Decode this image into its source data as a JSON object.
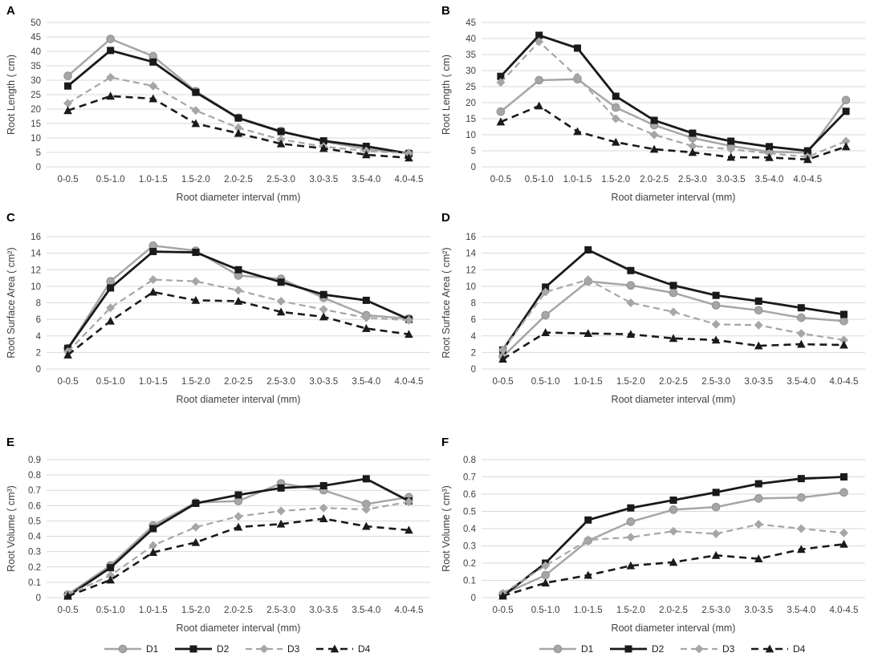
{
  "colors": {
    "gray_series": "#a6a6a6",
    "black_series": "#1a1a1a",
    "gridline": "#d9d9d9",
    "tick_text": "#404040",
    "panel_letter": "#000000"
  },
  "series_styles": {
    "D1": {
      "color": "#a6a6a6",
      "marker": "circle",
      "dash": "",
      "width": 2.5
    },
    "D2": {
      "color": "#1a1a1a",
      "marker": "square",
      "dash": "",
      "width": 2.8
    },
    "D3": {
      "color": "#a6a6a6",
      "marker": "diamond",
      "dash": "8 5",
      "width": 2.2
    },
    "D4": {
      "color": "#1a1a1a",
      "marker": "triangle",
      "dash": "9 6",
      "width": 2.6
    }
  },
  "legend": {
    "entries": [
      "D1",
      "D2",
      "D3",
      "D4"
    ]
  },
  "chart_data": [
    {
      "letter": "A",
      "type": "line",
      "title": "",
      "xlabel": "Root diameter interval (mm)",
      "ylabel": "Root Length ( cm)",
      "ylim": [
        0,
        50
      ],
      "ystep": 5,
      "tick_decimals": 0,
      "grid": true,
      "categories": [
        "0-0.5",
        "0.5-1.0",
        "1.0-1.5",
        "1.5-2.0",
        "2.0-2.5",
        "2.5-3.0",
        "3.0-3.5",
        "3.5-4.0",
        "4.0-4.5"
      ],
      "series": [
        {
          "name": "D1",
          "values": [
            31.5,
            44.3,
            38.3,
            26.2,
            17.0,
            12.4,
            8.8,
            6.2,
            4.7
          ]
        },
        {
          "name": "D2",
          "values": [
            28.0,
            40.3,
            36.3,
            25.8,
            16.9,
            12.2,
            9.0,
            7.1,
            4.6
          ]
        },
        {
          "name": "D3",
          "values": [
            22.0,
            31.0,
            28.0,
            19.5,
            13.5,
            9.5,
            7.0,
            5.5,
            4.7
          ]
        },
        {
          "name": "D4",
          "values": [
            19.5,
            24.5,
            23.6,
            15.0,
            11.6,
            8.0,
            6.4,
            4.2,
            3.1
          ]
        }
      ]
    },
    {
      "letter": "B",
      "type": "line",
      "title": "",
      "xlabel": "Root diameter interval (mm)",
      "ylabel": "Root Length ( cm)",
      "ylim": [
        0,
        45
      ],
      "ystep": 5,
      "tick_decimals": 0,
      "grid": true,
      "categories": [
        "0-0.5",
        "0.5-1.0",
        "1.0-1.5",
        "1.5-2.0",
        "2.0-2.5",
        "2.5-3.0",
        "3.0-3.5",
        "3.5-4.0",
        "4.0-4.5",
        ""
      ],
      "series": [
        {
          "name": "D1",
          "values": [
            17.2,
            27.0,
            27.3,
            18.5,
            13.0,
            9.0,
            6.5,
            4.7,
            4.4,
            20.8
          ]
        },
        {
          "name": "D2",
          "values": [
            28.2,
            41.0,
            37.0,
            22.0,
            14.5,
            10.5,
            8.0,
            6.3,
            5.0,
            17.3
          ]
        },
        {
          "name": "D3",
          "values": [
            26.3,
            39.0,
            28.0,
            15.0,
            10.0,
            6.5,
            5.5,
            4.2,
            3.1,
            8.0
          ]
        },
        {
          "name": "D4",
          "values": [
            14.0,
            19.0,
            11.0,
            7.7,
            5.5,
            4.5,
            3.0,
            2.9,
            2.3,
            6.3
          ]
        }
      ]
    },
    {
      "letter": "C",
      "type": "line",
      "title": "",
      "xlabel": "Root diameter interval (mm)",
      "ylabel": "Root Surface Area ( cm²)",
      "ylim": [
        0,
        16
      ],
      "ystep": 2,
      "tick_decimals": 0,
      "grid": true,
      "categories": [
        "0-0.5",
        "0.5-1.0",
        "1.0-1.5",
        "1.5-2.0",
        "2.0-2.5",
        "2.5-3.0",
        "3.0-3.5",
        "3.5-4.0",
        "4.0-4.5"
      ],
      "series": [
        {
          "name": "D1",
          "values": [
            2.5,
            10.6,
            14.9,
            14.3,
            11.3,
            10.9,
            8.6,
            6.5,
            6.1
          ]
        },
        {
          "name": "D2",
          "values": [
            2.5,
            9.8,
            14.2,
            14.1,
            12.0,
            10.5,
            9.0,
            8.3,
            6.0
          ]
        },
        {
          "name": "D3",
          "values": [
            2.1,
            7.4,
            10.8,
            10.6,
            9.5,
            8.2,
            7.2,
            6.2,
            5.9
          ]
        },
        {
          "name": "D4",
          "values": [
            1.7,
            5.8,
            9.3,
            8.3,
            8.2,
            6.9,
            6.3,
            4.9,
            4.2
          ]
        }
      ]
    },
    {
      "letter": "D",
      "type": "line",
      "title": "",
      "xlabel": "Root diameter interval (mm)",
      "ylabel": "Root Surface Area ( cm²)",
      "ylim": [
        0,
        16
      ],
      "ystep": 2,
      "tick_decimals": 0,
      "grid": true,
      "categories": [
        "0-0.5",
        "0.5-1.0",
        "1.0-1.5",
        "1.5-2.0",
        "2.0-2.5",
        "2.5-3.0",
        "3.0-3.5",
        "3.5-4.0",
        "4.0-4.5"
      ],
      "series": [
        {
          "name": "D1",
          "values": [
            1.5,
            6.5,
            10.6,
            10.1,
            9.2,
            7.7,
            7.1,
            6.2,
            5.8
          ]
        },
        {
          "name": "D2",
          "values": [
            2.3,
            9.9,
            14.4,
            11.9,
            10.1,
            8.9,
            8.2,
            7.4,
            6.6
          ]
        },
        {
          "name": "D3",
          "values": [
            2.3,
            9.3,
            10.8,
            8.0,
            6.9,
            5.4,
            5.3,
            4.3,
            3.5
          ]
        },
        {
          "name": "D4",
          "values": [
            1.2,
            4.4,
            4.3,
            4.2,
            3.7,
            3.5,
            2.8,
            3.0,
            2.9
          ]
        }
      ]
    },
    {
      "letter": "E",
      "type": "line",
      "title": "",
      "xlabel": "Root diameter interval (mm)",
      "ylabel": "Root Volume ( cm³)",
      "ylim": [
        0,
        0.9
      ],
      "ystep": 0.1,
      "tick_decimals": 1,
      "grid": true,
      "categories": [
        "0-0.5",
        "0.5-1.0",
        "1.0-1.5",
        "1.5-2.0",
        "2.0-2.5",
        "2.5-3.0",
        "3.0-3.5",
        "3.5-4.0",
        "4.0-4.5"
      ],
      "series": [
        {
          "name": "D1",
          "values": [
            0.02,
            0.21,
            0.47,
            0.62,
            0.63,
            0.745,
            0.7,
            0.61,
            0.655
          ]
        },
        {
          "name": "D2",
          "values": [
            0.01,
            0.195,
            0.45,
            0.615,
            0.67,
            0.715,
            0.73,
            0.775,
            0.63
          ]
        },
        {
          "name": "D3",
          "values": [
            0.02,
            0.145,
            0.34,
            0.46,
            0.53,
            0.565,
            0.585,
            0.575,
            0.625
          ]
        },
        {
          "name": "D4",
          "values": [
            0.01,
            0.115,
            0.295,
            0.36,
            0.46,
            0.48,
            0.515,
            0.465,
            0.44
          ]
        }
      ]
    },
    {
      "letter": "F",
      "type": "line",
      "title": "",
      "xlabel": "Root diameter interval (mm)",
      "ylabel": "Root Volume ( cm³)",
      "ylim": [
        0,
        0.8
      ],
      "ystep": 0.1,
      "tick_decimals": 1,
      "grid": true,
      "categories": [
        "0-0.5",
        "0.5-1.0",
        "1.0-1.5",
        "1.5-2.0",
        "2.0-2.5",
        "2.5-3.0",
        "3.0-3.5",
        "3.5-4.0",
        "4.0-4.5"
      ],
      "series": [
        {
          "name": "D1",
          "values": [
            0.02,
            0.13,
            0.33,
            0.44,
            0.51,
            0.525,
            0.575,
            0.58,
            0.61
          ]
        },
        {
          "name": "D2",
          "values": [
            0.01,
            0.2,
            0.45,
            0.52,
            0.565,
            0.61,
            0.66,
            0.69,
            0.7
          ]
        },
        {
          "name": "D3",
          "values": [
            0.025,
            0.185,
            0.335,
            0.35,
            0.385,
            0.37,
            0.425,
            0.4,
            0.375
          ]
        },
        {
          "name": "D4",
          "values": [
            0.01,
            0.085,
            0.13,
            0.185,
            0.205,
            0.245,
            0.225,
            0.28,
            0.31
          ]
        }
      ]
    }
  ]
}
